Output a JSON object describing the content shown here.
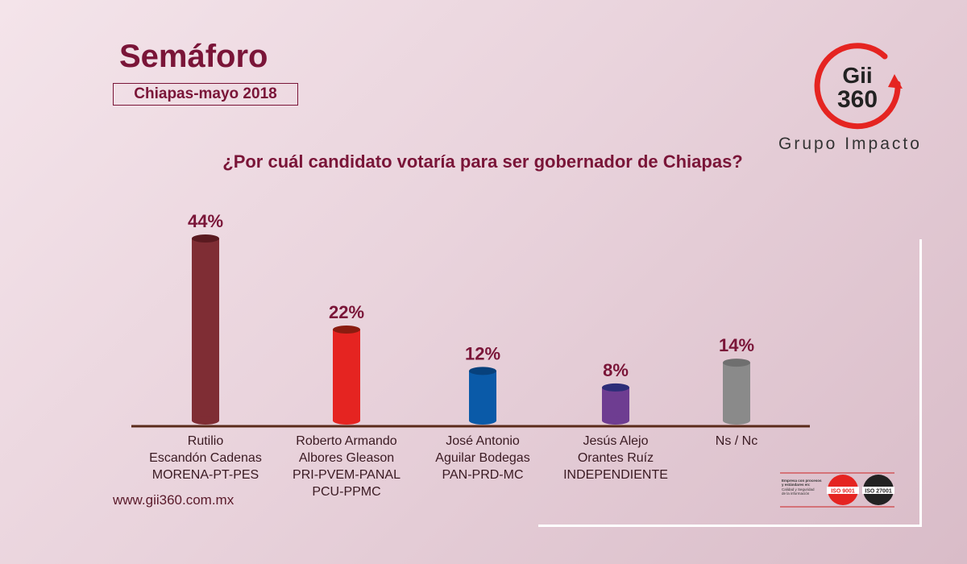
{
  "header": {
    "title": "Semáforo",
    "subtitle": "Chiapas-mayo 2018"
  },
  "logo": {
    "mark_line1": "Gii",
    "mark_line2": "360",
    "name": "Grupo Impacto",
    "accent_color": "#e52421"
  },
  "footer": {
    "website": "www.gii360.com.mx",
    "cert_text_1": "Empresa con procesos",
    "cert_text_2": "y estándares en:",
    "cert_text_3": "Calidad y Seguridad",
    "cert_text_4": "de la información",
    "cert_badge_1": "ISO 9001",
    "cert_badge_2": "ISO 27001"
  },
  "chart_data": {
    "type": "bar",
    "title": "¿Por cuál candidato votaría para ser gobernador de Chiapas?",
    "unit": "%",
    "categories": [
      [
        "Rutilio",
        "Escandón Cadenas",
        "MORENA-PT-PES"
      ],
      [
        "Roberto Armando",
        "Albores Gleason",
        "PRI-PVEM-PANAL",
        "PCU-PPMC"
      ],
      [
        "José Antonio",
        "Aguilar Bodegas",
        "PAN-PRD-MC"
      ],
      [
        "Jesús Alejo",
        "Orantes Ruíz",
        "INDEPENDIENTE"
      ],
      [
        "Ns / Nc"
      ]
    ],
    "values": [
      44,
      22,
      12,
      8,
      14
    ],
    "value_labels": [
      "44%",
      "22%",
      "12%",
      "8%",
      "14%"
    ],
    "colors": [
      "#7f2d34",
      "#e52421",
      "#0a5aa8",
      "#6e3d91",
      "#8a8a8a"
    ],
    "top_colors": [
      "#5a1a20",
      "#8a1c10",
      "#07417c",
      "#2d2d78",
      "#6f6f6f"
    ],
    "ylim": [
      0,
      44
    ],
    "grid": false,
    "legend": "none"
  }
}
